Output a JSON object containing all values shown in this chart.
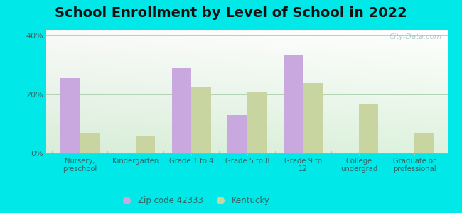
{
  "title": "School Enrollment by Level of School in 2022",
  "categories": [
    "Nursery,\npreschool",
    "Kindergarten",
    "Grade 1 to 4",
    "Grade 5 to 8",
    "Grade 9 to\n12",
    "College\nundergrad",
    "Graduate or\nprofessional"
  ],
  "zip_values": [
    25.5,
    0,
    29.0,
    13.0,
    33.5,
    0,
    0
  ],
  "ky_values": [
    7.0,
    6.0,
    22.5,
    21.0,
    24.0,
    17.0,
    7.0
  ],
  "zip_color": "#c9a8e0",
  "ky_color": "#c8d5a0",
  "zip_label": "Zip code 42333",
  "ky_label": "Kentucky",
  "ylim": [
    0,
    42
  ],
  "yticks": [
    0,
    20,
    40
  ],
  "ytick_labels": [
    "0%",
    "20%",
    "40%"
  ],
  "background_outer": "#00e8e8",
  "title_fontsize": 14,
  "bar_width": 0.35,
  "watermark": "City-Data.com",
  "grad_top_left": "#c8eed0",
  "grad_top_right": "#e8f8f0",
  "grad_bottom_left": "#d0f0d8",
  "grad_bottom_right": "#f8fef8"
}
